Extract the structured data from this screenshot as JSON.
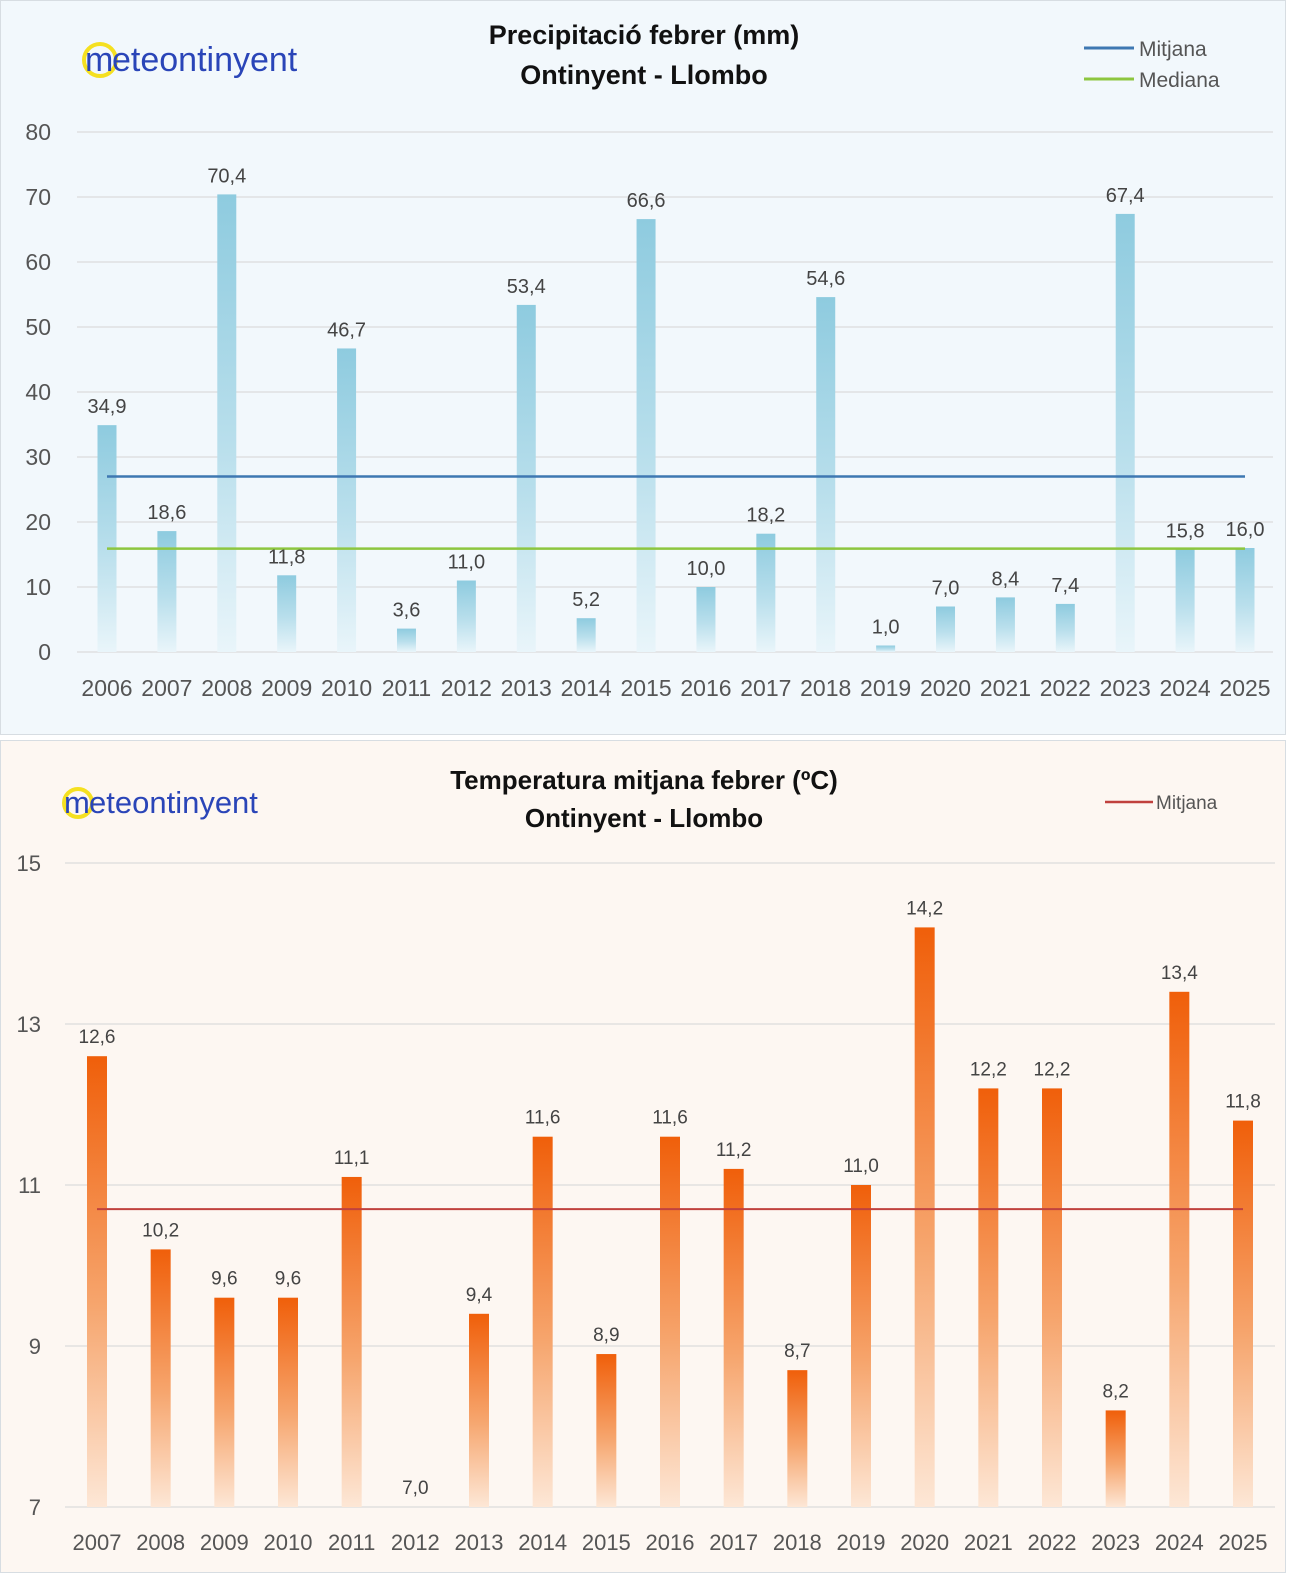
{
  "brand": "meteontinyent",
  "brand_parts": {
    "first": "m",
    "rest": "eteontinyent"
  },
  "colors": {
    "precip_bar": "#8ecbdf",
    "precip_mean_line": "#3e78b2",
    "precip_median_line": "#8dc63f",
    "temp_bar": "#f26a12",
    "temp_mean_line": "#c0413e",
    "logo_circle": "#f5e020",
    "logo_text": "#2a45b8"
  },
  "chart_data": [
    {
      "type": "bar",
      "title": [
        "Precipitació febrer (mm)",
        "Ontinyent - Llombo"
      ],
      "categories": [
        "2006",
        "2007",
        "2008",
        "2009",
        "2010",
        "2011",
        "2012",
        "2013",
        "2014",
        "2015",
        "2016",
        "2017",
        "2018",
        "2019",
        "2020",
        "2021",
        "2022",
        "2023",
        "2024",
        "2025"
      ],
      "values": [
        34.9,
        18.6,
        70.4,
        11.8,
        46.7,
        3.6,
        11.0,
        53.4,
        5.2,
        66.6,
        10.0,
        18.2,
        54.6,
        1.0,
        7.0,
        8.4,
        7.4,
        67.4,
        15.8,
        16.0
      ],
      "labels": [
        "34,9",
        "18,6",
        "70,4",
        "11,8",
        "46,7",
        "3,6",
        "11,0",
        "53,4",
        "5,2",
        "66,6",
        "10,0",
        "18,2",
        "54,6",
        "1,0",
        "7,0",
        "8,4",
        "7,4",
        "67,4",
        "15,8",
        "16,0"
      ],
      "ylim": [
        0,
        80
      ],
      "yticks": [
        0,
        10,
        20,
        30,
        40,
        50,
        60,
        70,
        80
      ],
      "grid": true,
      "legend_position": "top-right",
      "reference_lines": [
        {
          "name": "Mitjana",
          "value": 27.0
        },
        {
          "name": "Mediana",
          "value": 15.9
        }
      ]
    },
    {
      "type": "bar",
      "title": [
        "Temperatura mitjana febrer (ºC)",
        "Ontinyent - Llombo"
      ],
      "categories": [
        "2007",
        "2008",
        "2009",
        "2010",
        "2011",
        "2012",
        "2013",
        "2014",
        "2015",
        "2016",
        "2017",
        "2018",
        "2019",
        "2020",
        "2021",
        "2022",
        "2023",
        "2024",
        "2025"
      ],
      "values": [
        12.6,
        10.2,
        9.6,
        9.6,
        11.1,
        7.0,
        9.4,
        11.6,
        8.9,
        11.6,
        11.2,
        8.7,
        11.0,
        14.2,
        12.2,
        12.2,
        8.2,
        13.4,
        11.8
      ],
      "labels": [
        "12,6",
        "10,2",
        "9,6",
        "9,6",
        "11,1",
        "7,0",
        "9,4",
        "11,6",
        "8,9",
        "11,6",
        "11,2",
        "8,7",
        "11,0",
        "14,2",
        "12,2",
        "12,2",
        "8,2",
        "13,4",
        "11,8"
      ],
      "ylim": [
        7,
        15
      ],
      "yticks": [
        7,
        9,
        11,
        13,
        15
      ],
      "grid": true,
      "legend_position": "top-right",
      "reference_lines": [
        {
          "name": "Mitjana",
          "value": 10.7
        }
      ]
    }
  ]
}
